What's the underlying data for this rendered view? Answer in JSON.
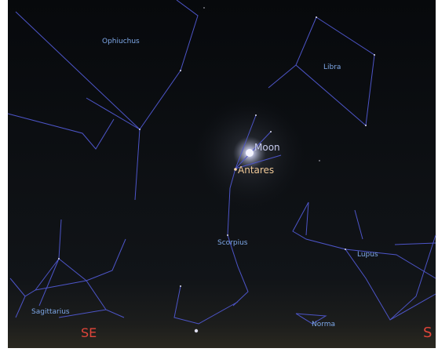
{
  "constellations": [
    "Ophiuchus",
    "Libra",
    "Scorpius",
    "Lupus",
    "Sagittarius",
    "Norma"
  ],
  "objects": [
    "Moon",
    "Antares"
  ],
  "cardinals": [
    "SE",
    "S"
  ]
}
